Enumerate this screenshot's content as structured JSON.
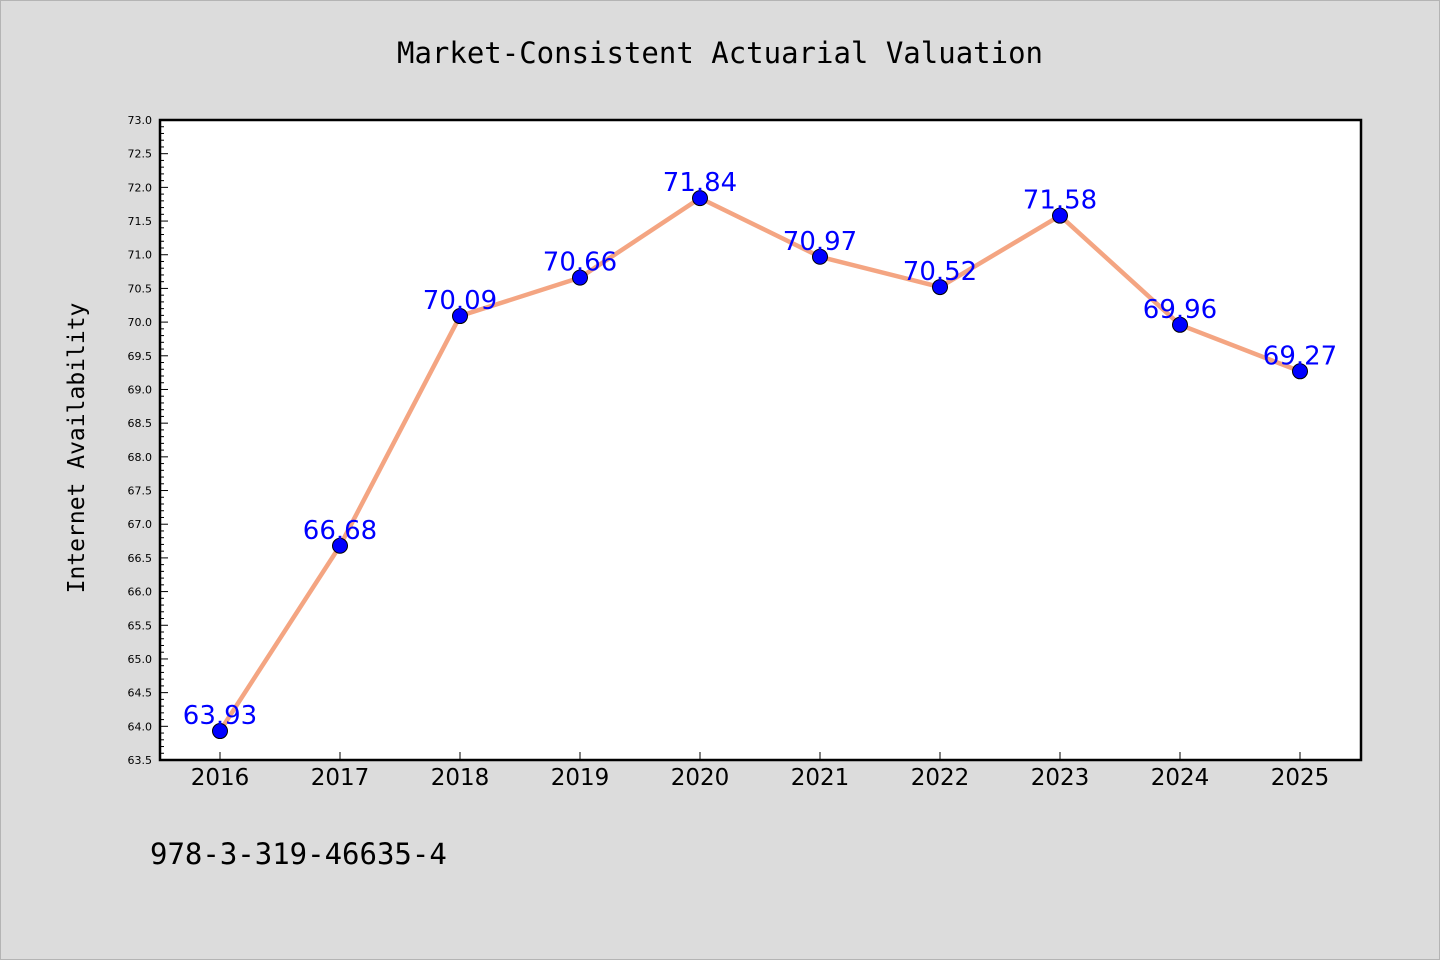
{
  "chart_data": {
    "type": "line",
    "title": "Market-Consistent Actuarial Valuation",
    "xlabel": "",
    "ylabel": "Internet Availability",
    "categories": [
      "2016",
      "2017",
      "2018",
      "2019",
      "2020",
      "2021",
      "2022",
      "2023",
      "2024",
      "2025"
    ],
    "series": [
      {
        "values": [
          63.93,
          66.68,
          70.09,
          70.66,
          71.84,
          70.97,
          70.52,
          71.58,
          69.96,
          69.27
        ],
        "labels": [
          "63.93",
          "66.68",
          "70.09",
          "70.66",
          "71.84",
          "70.97",
          "70.52",
          "71.58",
          "69.96",
          "69.27"
        ],
        "line_color": "#f4a582",
        "marker_color": "#0000ff"
      }
    ],
    "ylim": [
      63.5,
      73.0
    ],
    "yticks": [
      "63.5",
      "64.0",
      "64.5",
      "65.0",
      "65.5",
      "66.0",
      "66.5",
      "67.0",
      "67.5",
      "68.0",
      "68.5",
      "69.0",
      "69.5",
      "70.0",
      "70.5",
      "71.0",
      "71.5",
      "72.0",
      "72.5",
      "73.0"
    ],
    "grid": false,
    "label_color": "#0000ff"
  },
  "footer_text": "978-3-319-46635-4"
}
